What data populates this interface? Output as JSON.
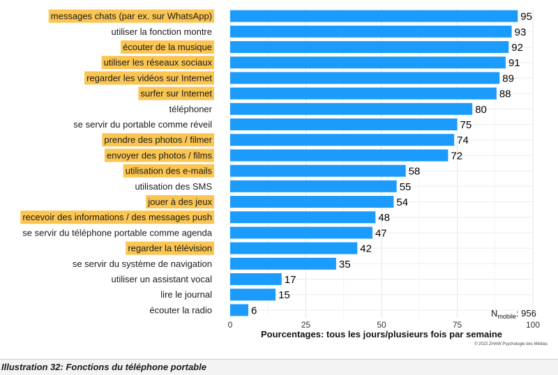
{
  "chart_data": {
    "type": "bar",
    "orientation": "horizontal",
    "categories": [
      "messages chats (par ex. sur WhatsApp)",
      "utiliser la fonction montre",
      "écouter de la musique",
      "utiliser les réseaux sociaux",
      "regarder les vidéos sur Internet",
      "surfer sur Internet",
      "téléphoner",
      "se servir du portable comme réveil",
      "prendre des photos / filmer",
      "envoyer des photos / films",
      "utilisation des e-mails",
      "utilisation des SMS",
      "jouer à des jeux",
      "recevoir des informations / des messages push",
      "se servir du téléphone portable comme agenda",
      "regarder la télévision",
      "se servir du système de navigation",
      "utiliser un assistant vocal",
      "lire le journal",
      "écouter la radio"
    ],
    "values": [
      95,
      93,
      92,
      91,
      89,
      88,
      80,
      75,
      74,
      72,
      58,
      55,
      54,
      48,
      47,
      42,
      35,
      17,
      15,
      6
    ],
    "highlighted": [
      true,
      false,
      true,
      true,
      true,
      true,
      false,
      false,
      true,
      true,
      true,
      false,
      true,
      true,
      false,
      true,
      false,
      false,
      false,
      false
    ],
    "xlabel": "Pourcentages: tous les jours/plusieurs fois par semaine",
    "xlim": [
      0,
      100
    ],
    "xticks": [
      0,
      25,
      50,
      75,
      100
    ],
    "grid": true,
    "bar_color": "#1b9cfc",
    "highlight_color": "#fac553",
    "annotation": {
      "prefix": "N",
      "subscript": "mobile",
      "suffix": ": 956"
    },
    "credit": "© 2022 ZHAW Psychologie des Médias"
  },
  "caption": "Illustration 32: Fonctions du téléphone portable"
}
